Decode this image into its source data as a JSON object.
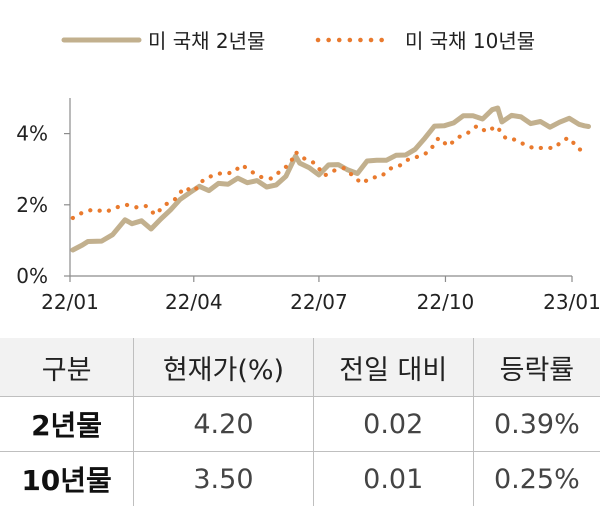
{
  "colors": {
    "series_2y": "#c2b08e",
    "series_10y": "#e97a2e",
    "axis": "#8c8c8c",
    "header_bg": "#f2f2f2"
  },
  "chart_data": {
    "type": "line",
    "title": "",
    "xlabel": "",
    "ylabel": "",
    "x_ticks": [
      "22/01",
      "22/04",
      "22/07",
      "22/10",
      "23/01"
    ],
    "y_ticks": [
      "0%",
      "2%",
      "4%"
    ],
    "ylim": [
      0,
      5
    ],
    "legend_position": "top",
    "series": [
      {
        "name": "미 국채 2년물",
        "style": "solid",
        "points": [
          [
            "22/01/03",
            0.73
          ],
          [
            "22/01/10",
            0.87
          ],
          [
            "22/01/14",
            0.97
          ],
          [
            "22/01/24",
            0.98
          ],
          [
            "22/02/01",
            1.16
          ],
          [
            "22/02/10",
            1.58
          ],
          [
            "22/02/15",
            1.47
          ],
          [
            "22/02/22",
            1.55
          ],
          [
            "22/03/01",
            1.32
          ],
          [
            "22/03/08",
            1.6
          ],
          [
            "22/03/15",
            1.85
          ],
          [
            "22/03/22",
            2.15
          ],
          [
            "22/03/29",
            2.34
          ],
          [
            "22/04/05",
            2.52
          ],
          [
            "22/04/12",
            2.4
          ],
          [
            "22/04/19",
            2.6
          ],
          [
            "22/04/26",
            2.58
          ],
          [
            "22/05/03",
            2.75
          ],
          [
            "22/05/10",
            2.62
          ],
          [
            "22/05/17",
            2.68
          ],
          [
            "22/05/24",
            2.5
          ],
          [
            "22/05/31",
            2.56
          ],
          [
            "22/06/07",
            2.8
          ],
          [
            "22/06/14",
            3.37
          ],
          [
            "22/06/17",
            3.17
          ],
          [
            "22/06/24",
            3.04
          ],
          [
            "22/07/01",
            2.84
          ],
          [
            "22/07/08",
            3.12
          ],
          [
            "22/07/15",
            3.13
          ],
          [
            "22/07/22",
            2.98
          ],
          [
            "22/07/29",
            2.88
          ],
          [
            "22/08/05",
            3.23
          ],
          [
            "22/08/12",
            3.25
          ],
          [
            "22/08/19",
            3.25
          ],
          [
            "22/08/26",
            3.39
          ],
          [
            "22/09/02",
            3.4
          ],
          [
            "22/09/09",
            3.56
          ],
          [
            "22/09/16",
            3.87
          ],
          [
            "22/09/23",
            4.21
          ],
          [
            "22/09/30",
            4.22
          ],
          [
            "22/10/07",
            4.3
          ],
          [
            "22/10/14",
            4.5
          ],
          [
            "22/10/21",
            4.5
          ],
          [
            "22/10/28",
            4.41
          ],
          [
            "22/11/04",
            4.67
          ],
          [
            "22/11/08",
            4.72
          ],
          [
            "22/11/11",
            4.33
          ],
          [
            "22/11/18",
            4.51
          ],
          [
            "22/11/25",
            4.47
          ],
          [
            "22/12/02",
            4.28
          ],
          [
            "22/12/09",
            4.34
          ],
          [
            "22/12/16",
            4.18
          ],
          [
            "22/12/23",
            4.32
          ],
          [
            "22/12/30",
            4.43
          ],
          [
            "23/01/06",
            4.26
          ],
          [
            "23/01/10",
            4.22
          ],
          [
            "23/01/13",
            4.2
          ]
        ]
      },
      {
        "name": "미 국채 10년물",
        "style": "dotted",
        "points": [
          [
            "22/01/03",
            1.63
          ],
          [
            "22/01/10",
            1.78
          ],
          [
            "22/01/18",
            1.87
          ],
          [
            "22/01/27",
            1.8
          ],
          [
            "22/02/04",
            1.93
          ],
          [
            "22/02/11",
            2.0
          ],
          [
            "22/02/18",
            1.93
          ],
          [
            "22/02/25",
            1.97
          ],
          [
            "22/03/04",
            1.72
          ],
          [
            "22/03/11",
            2.0
          ],
          [
            "22/03/18",
            2.14
          ],
          [
            "22/03/25",
            2.48
          ],
          [
            "22/04/01",
            2.38
          ],
          [
            "22/04/08",
            2.7
          ],
          [
            "22/04/15",
            2.83
          ],
          [
            "22/04/22",
            2.9
          ],
          [
            "22/04/29",
            2.89
          ],
          [
            "22/05/06",
            3.12
          ],
          [
            "22/05/13",
            2.93
          ],
          [
            "22/05/20",
            2.78
          ],
          [
            "22/05/27",
            2.74
          ],
          [
            "22/06/03",
            2.94
          ],
          [
            "22/06/10",
            3.16
          ],
          [
            "22/06/14",
            3.48
          ],
          [
            "22/06/21",
            3.28
          ],
          [
            "22/06/28",
            3.17
          ],
          [
            "22/07/05",
            2.82
          ],
          [
            "22/07/12",
            2.96
          ],
          [
            "22/07/19",
            3.03
          ],
          [
            "22/07/26",
            2.81
          ],
          [
            "22/08/01",
            2.6
          ],
          [
            "22/08/08",
            2.76
          ],
          [
            "22/08/15",
            2.79
          ],
          [
            "22/08/22",
            3.02
          ],
          [
            "22/08/29",
            3.11
          ],
          [
            "22/09/05",
            3.3
          ],
          [
            "22/09/12",
            3.36
          ],
          [
            "22/09/19",
            3.49
          ],
          [
            "22/09/26",
            3.88
          ],
          [
            "22/10/03",
            3.65
          ],
          [
            "22/10/10",
            3.89
          ],
          [
            "22/10/17",
            4.01
          ],
          [
            "22/10/24",
            4.22
          ],
          [
            "22/10/31",
            4.05
          ],
          [
            "22/11/07",
            4.21
          ],
          [
            "22/11/14",
            3.86
          ],
          [
            "22/11/21",
            3.83
          ],
          [
            "22/11/28",
            3.68
          ],
          [
            "22/12/05",
            3.58
          ],
          [
            "22/12/12",
            3.61
          ],
          [
            "22/12/19",
            3.59
          ],
          [
            "22/12/26",
            3.83
          ],
          [
            "22/12/30",
            3.88
          ],
          [
            "23/01/06",
            3.56
          ],
          [
            "23/01/10",
            3.53
          ],
          [
            "23/01/13",
            3.5
          ]
        ]
      }
    ]
  },
  "table": {
    "headers": [
      "구분",
      "현재가(%)",
      "전일 대비",
      "등락률"
    ],
    "rows": [
      [
        "2년물",
        "4.20",
        "0.02",
        "0.39%"
      ],
      [
        "10년물",
        "3.50",
        "0.01",
        "0.25%"
      ]
    ]
  }
}
